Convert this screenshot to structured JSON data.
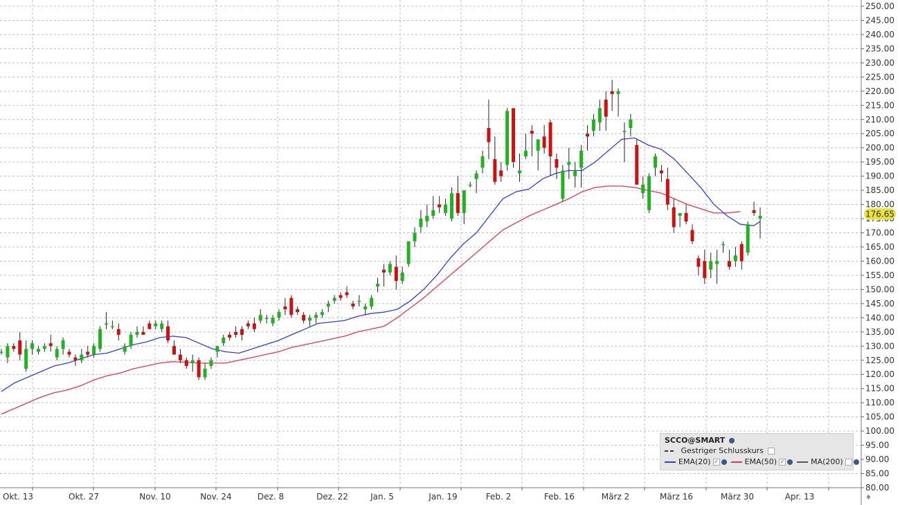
{
  "chart_data": {
    "type": "candlestick",
    "y_axis": {
      "min": 80,
      "max": 250,
      "step": 5,
      "side": "right",
      "tick_labels": [
        "250.00",
        "245.00",
        "240.00",
        "235.00",
        "230.00",
        "225.00",
        "220.00",
        "215.00",
        "210.00",
        "205.00",
        "200.00",
        "195.00",
        "190.00",
        "185.00",
        "180.00",
        "175.00",
        "170.00",
        "165.00",
        "160.00",
        "155.00",
        "150.00",
        "145.00",
        "140.00",
        "135.00",
        "130.00",
        "125.00",
        "120.00",
        "115.00",
        "110.00",
        "105.00",
        "100.00",
        "95.00",
        "90.00",
        "85.00",
        "80.00"
      ]
    },
    "x_axis": {
      "tick_labels": [
        "Okt. 13",
        "Okt. 27",
        "Nov. 10",
        "Nov. 24",
        "Dez. 8",
        "Dez. 22",
        "Jan. 5",
        "Jan. 19",
        "Feb. 2",
        "Feb. 16",
        "März 2",
        "März 16",
        "März 30",
        "Apr. 13"
      ]
    },
    "grid": true,
    "last_price_label": "176.65",
    "colors": {
      "up": "#1fb31f",
      "down": "#cc1111",
      "ema20": "#2b3fe8",
      "ema50": "#e8344c",
      "grid": "#bdbdbd",
      "price_badge": "#e6e23a"
    },
    "candles": [
      [
        128,
        129,
        127,
        128
      ],
      [
        126,
        131,
        124,
        130
      ],
      [
        130,
        131,
        128,
        129
      ],
      [
        132,
        135,
        125,
        127
      ],
      [
        122,
        132,
        121,
        129
      ],
      [
        129,
        132,
        127,
        131
      ],
      [
        128,
        130,
        127,
        129
      ],
      [
        129,
        131,
        128,
        130
      ],
      [
        131,
        134,
        128,
        130
      ],
      [
        126,
        130,
        125,
        129
      ],
      [
        129,
        133,
        127,
        132
      ],
      [
        128,
        129,
        126,
        127
      ],
      [
        126,
        127,
        123,
        125
      ],
      [
        125,
        129,
        124,
        127
      ],
      [
        128,
        130,
        126,
        127
      ],
      [
        127,
        131,
        126,
        130
      ],
      [
        129,
        137,
        128,
        136
      ],
      [
        138,
        142,
        136,
        138
      ],
      [
        137,
        139,
        136,
        137
      ],
      [
        136,
        138,
        132,
        134
      ],
      [
        128,
        131,
        127,
        130
      ],
      [
        130,
        135,
        129,
        134
      ],
      [
        134,
        137,
        133,
        135
      ],
      [
        135,
        137,
        134,
        134
      ],
      [
        138,
        139,
        136,
        136
      ],
      [
        137,
        139,
        136,
        138
      ],
      [
        136,
        139,
        135,
        138
      ],
      [
        137,
        139,
        131,
        132
      ],
      [
        130,
        132,
        127,
        127
      ],
      [
        127,
        129,
        124,
        125
      ],
      [
        125,
        126,
        122,
        123
      ],
      [
        124,
        127,
        121,
        125
      ],
      [
        125,
        126,
        118,
        119
      ],
      [
        119,
        124,
        118,
        122
      ],
      [
        123,
        126,
        122,
        125
      ],
      [
        128,
        130,
        126,
        130
      ],
      [
        131,
        134,
        130,
        133
      ],
      [
        134,
        135,
        132,
        133
      ],
      [
        135,
        137,
        133,
        134
      ],
      [
        136,
        137,
        132,
        134
      ],
      [
        138,
        139,
        136,
        137
      ],
      [
        138,
        140,
        135,
        136
      ],
      [
        139,
        143,
        138,
        141
      ],
      [
        140,
        141,
        138,
        140
      ],
      [
        138,
        141,
        137,
        140
      ],
      [
        140,
        143,
        139,
        142
      ],
      [
        144,
        147,
        141,
        143
      ],
      [
        147,
        148,
        140,
        141
      ],
      [
        143,
        144,
        141,
        142
      ],
      [
        141,
        142,
        138,
        139
      ],
      [
        139,
        141,
        137,
        140
      ],
      [
        140,
        142,
        138,
        141
      ],
      [
        141,
        143,
        140,
        142
      ],
      [
        144,
        146,
        142,
        145
      ],
      [
        146,
        148,
        145,
        147
      ],
      [
        148,
        149,
        146,
        147
      ],
      [
        149,
        151,
        147,
        148
      ],
      [
        145,
        146,
        143,
        144
      ],
      [
        146,
        148,
        144,
        146
      ],
      [
        143,
        145,
        141,
        144
      ],
      [
        144,
        148,
        143,
        147
      ],
      [
        151,
        154,
        149,
        152
      ],
      [
        157,
        159,
        151,
        156
      ],
      [
        156,
        160,
        155,
        159
      ],
      [
        158,
        162,
        150,
        153
      ],
      [
        153,
        158,
        152,
        156
      ],
      [
        159,
        167,
        158,
        167
      ],
      [
        167,
        172,
        165,
        170
      ],
      [
        172,
        178,
        170,
        175
      ],
      [
        174,
        180,
        172,
        176
      ],
      [
        176,
        183,
        175,
        178
      ],
      [
        180,
        183,
        177,
        179
      ],
      [
        177,
        182,
        176,
        180
      ],
      [
        175,
        186,
        174,
        184
      ],
      [
        184,
        190,
        176,
        177
      ],
      [
        177,
        185,
        173,
        185
      ],
      [
        187,
        188,
        186,
        187
      ],
      [
        189,
        192,
        184,
        191
      ],
      [
        193,
        199,
        191,
        197
      ],
      [
        207,
        217,
        196,
        202
      ],
      [
        196,
        204,
        187,
        188
      ],
      [
        192,
        195,
        188,
        190
      ],
      [
        194,
        214,
        192,
        213
      ],
      [
        214,
        214,
        193,
        195
      ],
      [
        191,
        198,
        188,
        192
      ],
      [
        197,
        205,
        196,
        199
      ],
      [
        206,
        208,
        197,
        205
      ],
      [
        199,
        202,
        192,
        203
      ],
      [
        204,
        208,
        198,
        200
      ],
      [
        209,
        210,
        190,
        197
      ],
      [
        196,
        198,
        189,
        193
      ],
      [
        182,
        194,
        181,
        192
      ],
      [
        194,
        200,
        189,
        195
      ],
      [
        190,
        195,
        186,
        192
      ],
      [
        193,
        201,
        186,
        199
      ],
      [
        205,
        208,
        199,
        204
      ],
      [
        206,
        212,
        204,
        210
      ],
      [
        209,
        217,
        206,
        214
      ],
      [
        217,
        220,
        206,
        211
      ],
      [
        220,
        224,
        213,
        219
      ],
      [
        219,
        221,
        211,
        220
      ],
      [
        206,
        209,
        195,
        206
      ],
      [
        207,
        212,
        204,
        210
      ],
      [
        201,
        203,
        187,
        187
      ],
      [
        184,
        190,
        182,
        187
      ],
      [
        178,
        191,
        177,
        190
      ],
      [
        193,
        198,
        190,
        197
      ],
      [
        192,
        194,
        188,
        191
      ],
      [
        189,
        193,
        178,
        180
      ],
      [
        179,
        182,
        170,
        172
      ],
      [
        176,
        177,
        172,
        177
      ],
      [
        177,
        180,
        173,
        174
      ],
      [
        171,
        173,
        166,
        167
      ],
      [
        161,
        162,
        155,
        158
      ],
      [
        160,
        164,
        152,
        154
      ],
      [
        157,
        163,
        154,
        160
      ],
      [
        159,
        164,
        152,
        160
      ],
      [
        166,
        167,
        163,
        166
      ],
      [
        160,
        164,
        157,
        158
      ],
      [
        160,
        165,
        158,
        162
      ],
      [
        166,
        167,
        157,
        160
      ],
      [
        163,
        174,
        162,
        173
      ],
      [
        178,
        181,
        176,
        177
      ],
      [
        175,
        179,
        168,
        176
      ]
    ],
    "ema20": [
      [
        0,
        114
      ],
      [
        10,
        117
      ],
      [
        20,
        119
      ],
      [
        30,
        121
      ],
      [
        40,
        123
      ],
      [
        50,
        124
      ],
      [
        60,
        125.5
      ],
      [
        70,
        127
      ],
      [
        80,
        127.5
      ],
      [
        90,
        129
      ],
      [
        100,
        130.5
      ],
      [
        110,
        131.5
      ],
      [
        120,
        133
      ],
      [
        130,
        133.5
      ],
      [
        140,
        133
      ],
      [
        150,
        131
      ],
      [
        160,
        129
      ],
      [
        170,
        128
      ],
      [
        180,
        127.5
      ],
      [
        190,
        129
      ],
      [
        200,
        130.5
      ],
      [
        210,
        132
      ],
      [
        220,
        134
      ],
      [
        230,
        136
      ],
      [
        240,
        138
      ],
      [
        250,
        138.5
      ],
      [
        260,
        139
      ],
      [
        270,
        140.5
      ],
      [
        280,
        141.5
      ],
      [
        290,
        142
      ],
      [
        300,
        143
      ],
      [
        310,
        146
      ],
      [
        320,
        150
      ],
      [
        330,
        155
      ],
      [
        340,
        161
      ],
      [
        350,
        166
      ],
      [
        360,
        170
      ],
      [
        370,
        176
      ],
      [
        380,
        182
      ],
      [
        390,
        184.5
      ],
      [
        400,
        185.5
      ],
      [
        410,
        189
      ],
      [
        420,
        191
      ],
      [
        430,
        192
      ],
      [
        440,
        192
      ],
      [
        450,
        195
      ],
      [
        460,
        199
      ],
      [
        470,
        203
      ],
      [
        480,
        203.5
      ],
      [
        490,
        201
      ],
      [
        500,
        199.5
      ],
      [
        510,
        196
      ],
      [
        520,
        191
      ],
      [
        530,
        186
      ],
      [
        540,
        180
      ],
      [
        550,
        176
      ],
      [
        560,
        173
      ],
      [
        570,
        172.5
      ],
      [
        575,
        174
      ]
    ],
    "ema50": [
      [
        0,
        106
      ],
      [
        10,
        108
      ],
      [
        20,
        110
      ],
      [
        30,
        112
      ],
      [
        40,
        113.5
      ],
      [
        50,
        114.5
      ],
      [
        60,
        116
      ],
      [
        70,
        118
      ],
      [
        80,
        119.5
      ],
      [
        90,
        120.5
      ],
      [
        100,
        122
      ],
      [
        110,
        123
      ],
      [
        120,
        124
      ],
      [
        130,
        124.5
      ],
      [
        140,
        124.3
      ],
      [
        150,
        124
      ],
      [
        160,
        124
      ],
      [
        170,
        124
      ],
      [
        180,
        125
      ],
      [
        190,
        126
      ],
      [
        200,
        127
      ],
      [
        210,
        128
      ],
      [
        220,
        129.5
      ],
      [
        230,
        130.5
      ],
      [
        240,
        131.5
      ],
      [
        250,
        132.5
      ],
      [
        260,
        133.5
      ],
      [
        270,
        135
      ],
      [
        280,
        136
      ],
      [
        290,
        137
      ],
      [
        300,
        140
      ],
      [
        310,
        143.5
      ],
      [
        320,
        147
      ],
      [
        330,
        151
      ],
      [
        340,
        155
      ],
      [
        350,
        159
      ],
      [
        360,
        163
      ],
      [
        370,
        167
      ],
      [
        380,
        171
      ],
      [
        390,
        173.5
      ],
      [
        400,
        176
      ],
      [
        410,
        178
      ],
      [
        420,
        180
      ],
      [
        430,
        182
      ],
      [
        440,
        184.5
      ],
      [
        450,
        186
      ],
      [
        460,
        186.5
      ],
      [
        470,
        186.5
      ],
      [
        480,
        186
      ],
      [
        490,
        185
      ],
      [
        500,
        184
      ],
      [
        510,
        182
      ],
      [
        520,
        180
      ],
      [
        530,
        178.5
      ],
      [
        540,
        177
      ],
      [
        550,
        177
      ],
      [
        560,
        177.5
      ]
    ]
  },
  "legend": {
    "title": "SCCO@SMART",
    "row1": "Gestriger Schlusskurs",
    "ema20_label": "EMA(20)",
    "ema50_label": "EMA(50)",
    "ma200_label": "MA(200)"
  }
}
